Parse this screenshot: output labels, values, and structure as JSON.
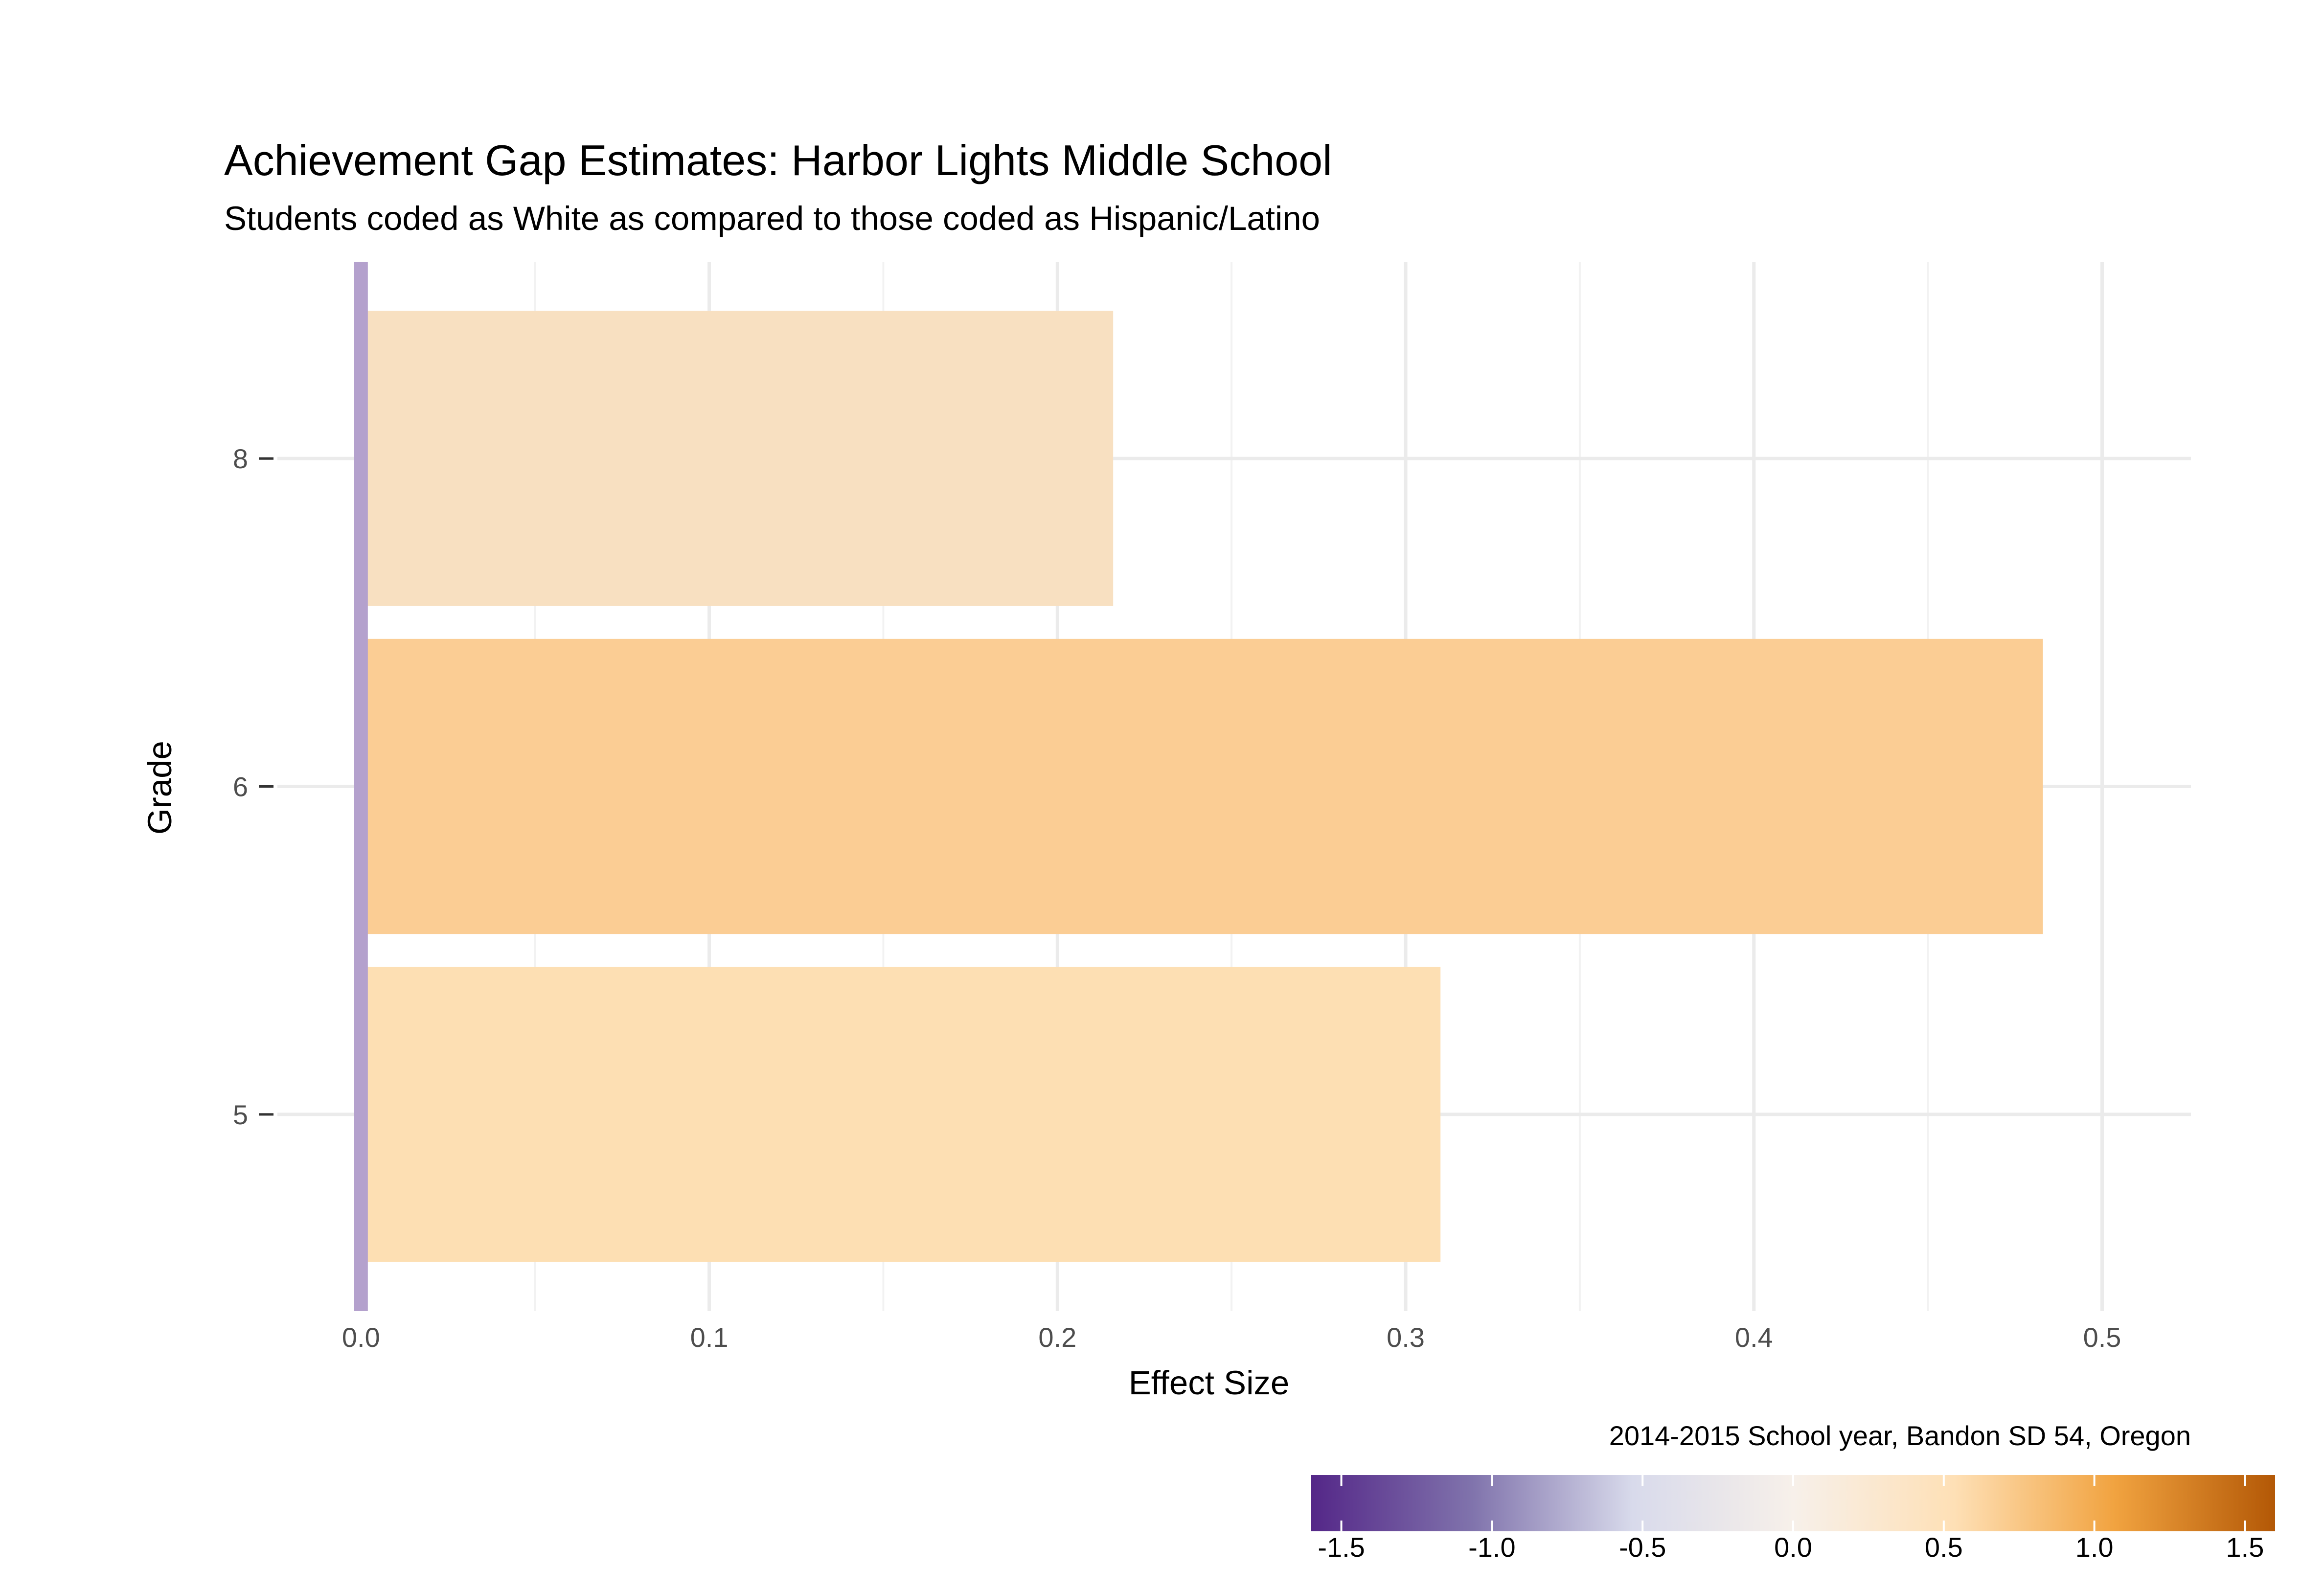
{
  "chart_data": {
    "type": "bar",
    "orientation": "horizontal",
    "title": "Achievement Gap Estimates: Harbor Lights Middle School",
    "subtitle": "Students coded as White as compared to those coded as Hispanic/Latino",
    "xlabel": "Effect Size",
    "ylabel": "Grade",
    "caption": "2014-2015 School year, Bandon SD 54, Oregon",
    "categories": [
      "5",
      "6",
      "8"
    ],
    "values": [
      0.31,
      0.483,
      0.216
    ],
    "bar_colors": [
      "#FDDFB3",
      "#FBCD94",
      "#F8E0C1"
    ],
    "xlim": [
      -0.0,
      0.5
    ],
    "x_ticks": [
      0.0,
      0.1,
      0.2,
      0.3,
      0.4,
      0.5
    ],
    "x_tick_labels": [
      "0.0",
      "0.1",
      "0.2",
      "0.3",
      "0.4",
      "0.5"
    ],
    "grid": true,
    "zero_line_color": "#B4A1CD",
    "legend": {
      "type": "colorbar",
      "placement": "bottom-right",
      "range": [
        -1.6,
        1.6
      ],
      "ticks": [
        -1.5,
        -1.0,
        -0.5,
        0.0,
        0.5,
        1.0,
        1.5
      ],
      "tick_labels": [
        "-1.5",
        "-1.0",
        "-0.5",
        "0.0",
        "0.5",
        "1.0",
        "1.5"
      ],
      "colors": [
        "#542788",
        "#8073AC",
        "#D8DAEB",
        "#F7F0EA",
        "#FEE0B6",
        "#F1A340",
        "#B35806"
      ]
    }
  }
}
